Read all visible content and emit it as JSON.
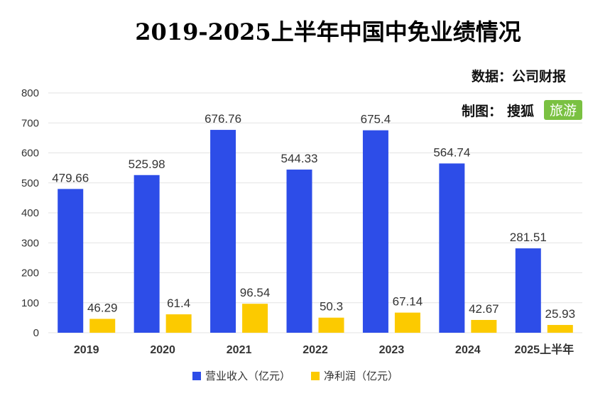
{
  "colors": {
    "revenue": "#2d4de8",
    "profit": "#fcca00",
    "brand_bg": "#7ac142"
  },
  "source": "数据：公司财报",
  "made_by_label": "制图：",
  "brand": {
    "name": "搜狐",
    "badge": "旅游"
  },
  "chart_data": {
    "type": "bar",
    "title": "2019-2025上半年中国中免业绩情况",
    "categories": [
      "2019",
      "2020",
      "2021",
      "2022",
      "2023",
      "2024",
      "2025上半年"
    ],
    "series": [
      {
        "name": "营业收入（亿元）",
        "values": [
          479.66,
          525.98,
          676.76,
          544.33,
          675.4,
          564.74,
          281.51
        ],
        "labels": [
          "479.66",
          "525.98",
          "676.76",
          "544.33",
          "675.4",
          "564.74",
          "281.51"
        ]
      },
      {
        "name": "净利润（亿元）",
        "values": [
          46.29,
          61.4,
          96.54,
          50.3,
          67.14,
          42.67,
          25.93
        ],
        "labels": [
          "46.29",
          "61.4",
          "96.54",
          "50.3",
          "67.14",
          "42.67",
          "25.93"
        ]
      }
    ],
    "ylim": [
      0,
      800
    ],
    "yticks": [
      0,
      100,
      200,
      300,
      400,
      500,
      600,
      700,
      800
    ],
    "grid": true,
    "legend": "bottom"
  }
}
